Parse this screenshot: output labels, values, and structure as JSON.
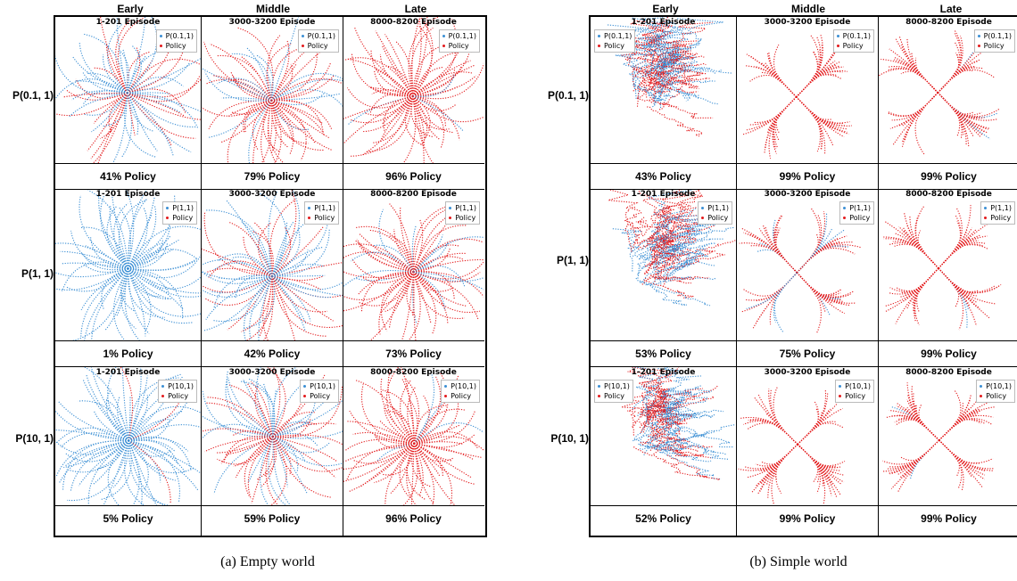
{
  "colors": {
    "ref": "#3b8fd4",
    "policy": "#e31a1c"
  },
  "panels": [
    {
      "caption": "(a) Empty world",
      "columns": [
        "Early",
        "Middle",
        "Late"
      ],
      "rows": [
        {
          "label": "P(0.1, 1)",
          "cells": [
            {
              "episode": "1-201 Episode",
              "legend_ref": "P(0.1,1)",
              "legend_policy": "Policy",
              "pct": "41% Policy"
            },
            {
              "episode": "3000-3200 Episode",
              "legend_ref": "P(0.1,1)",
              "legend_policy": "Policy",
              "pct": "79% Policy"
            },
            {
              "episode": "8000-8200 Episode",
              "legend_ref": "P(0.1,1)",
              "legend_policy": "Policy",
              "pct": "96% Policy"
            }
          ]
        },
        {
          "label": "P(1, 1)",
          "cells": [
            {
              "episode": "1-201 Episode",
              "legend_ref": "P(1,1)",
              "legend_policy": "Policy",
              "pct": "1% Policy"
            },
            {
              "episode": "3000-3200 Episode",
              "legend_ref": "P(1,1)",
              "legend_policy": "Policy",
              "pct": "42% Policy"
            },
            {
              "episode": "8000-8200 Episode",
              "legend_ref": "P(1,1)",
              "legend_policy": "Policy",
              "pct": "73% Policy"
            }
          ]
        },
        {
          "label": "P(10, 1)",
          "cells": [
            {
              "episode": "1-201 Episode",
              "legend_ref": "P(10,1)",
              "legend_policy": "Policy",
              "pct": "5% Policy"
            },
            {
              "episode": "3000-3200 Episode",
              "legend_ref": "P(10,1)",
              "legend_policy": "Policy",
              "pct": "59% Policy"
            },
            {
              "episode": "8000-8200 Episode",
              "legend_ref": "P(10,1)",
              "legend_policy": "Policy",
              "pct": "96% Policy"
            }
          ]
        }
      ]
    },
    {
      "caption": "(b) Simple world",
      "columns": [
        "Early",
        "Middle",
        "Late"
      ],
      "rows": [
        {
          "label": "P(0.1, 1)",
          "cells": [
            {
              "episode": "1-201 Episode",
              "legend_ref": "P(0.1,1)",
              "legend_policy": "Policy",
              "pct": "43% Policy"
            },
            {
              "episode": "3000-3200 Episode",
              "legend_ref": "P(0.1,1)",
              "legend_policy": "Policy",
              "pct": "99% Policy"
            },
            {
              "episode": "8000-8200 Episode",
              "legend_ref": "P(0.1,1)",
              "legend_policy": "Policy",
              "pct": "99% Policy"
            }
          ]
        },
        {
          "label": "P(1, 1)",
          "cells": [
            {
              "episode": "1-201 Episode",
              "legend_ref": "P(1,1)",
              "legend_policy": "Policy",
              "pct": "53% Policy"
            },
            {
              "episode": "3000-3200 Episode",
              "legend_ref": "P(1,1)",
              "legend_policy": "Policy",
              "pct": "75% Policy"
            },
            {
              "episode": "8000-8200 Episode",
              "legend_ref": "P(1,1)",
              "legend_policy": "Policy",
              "pct": "99% Policy"
            }
          ]
        },
        {
          "label": "P(10, 1)",
          "cells": [
            {
              "episode": "1-201 Episode",
              "legend_ref": "P(10,1)",
              "legend_policy": "Policy",
              "pct": "52% Policy"
            },
            {
              "episode": "3000-3200 Episode",
              "legend_ref": "P(10,1)",
              "legend_policy": "Policy",
              "pct": "99% Policy"
            },
            {
              "episode": "8000-8200 Episode",
              "legend_ref": "P(10,1)",
              "legend_policy": "Policy",
              "pct": "99% Policy"
            }
          ]
        }
      ]
    }
  ]
}
